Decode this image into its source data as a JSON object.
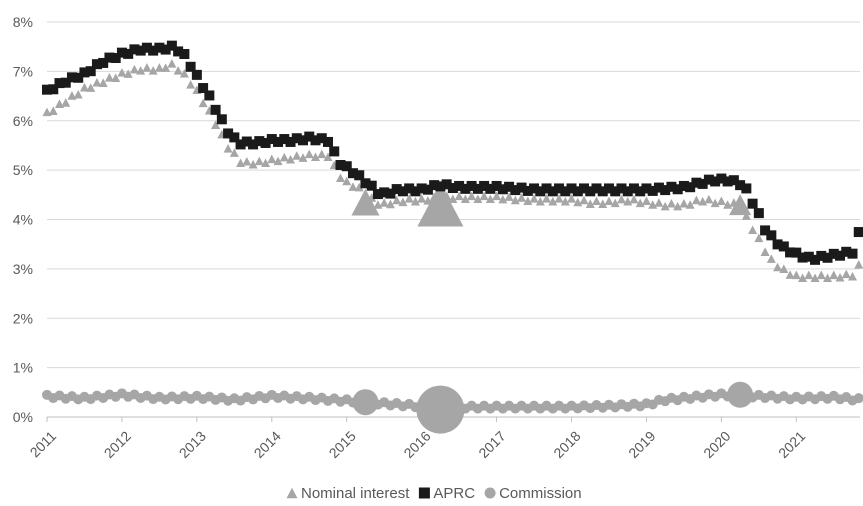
{
  "chart_data": {
    "type": "scatter",
    "title": "",
    "xlabel": "",
    "ylabel": "",
    "ylim": [
      0,
      8
    ],
    "xlim": [
      2011,
      2021.85
    ],
    "y_ticks": [
      "0%",
      "1%",
      "2%",
      "3%",
      "4%",
      "5%",
      "6%",
      "7%",
      "8%"
    ],
    "x_ticks": [
      "2011",
      "2012",
      "2013",
      "2014",
      "2015",
      "2016",
      "2017",
      "2018",
      "2019",
      "2020",
      "2021"
    ],
    "grid": true,
    "legend_position": "bottom",
    "series": [
      {
        "name": "Nominal interest",
        "marker": "triangle",
        "color": "#a6a6a6",
        "keypoints": [
          [
            2011.0,
            6.15
          ],
          [
            2011.25,
            6.4
          ],
          [
            2011.5,
            6.65
          ],
          [
            2011.75,
            6.8
          ],
          [
            2012.0,
            6.95
          ],
          [
            2012.25,
            7.05
          ],
          [
            2012.5,
            7.05
          ],
          [
            2012.65,
            7.15
          ],
          [
            2012.8,
            7.0
          ],
          [
            2013.0,
            6.6
          ],
          [
            2013.2,
            6.1
          ],
          [
            2013.4,
            5.5
          ],
          [
            2013.6,
            5.15
          ],
          [
            2013.8,
            5.15
          ],
          [
            2014.0,
            5.2
          ],
          [
            2014.25,
            5.25
          ],
          [
            2014.5,
            5.3
          ],
          [
            2014.75,
            5.3
          ],
          [
            2014.9,
            4.9
          ],
          [
            2015.0,
            4.75
          ],
          [
            2015.15,
            4.65
          ],
          [
            2015.3,
            4.45
          ],
          [
            2015.45,
            4.3
          ],
          [
            2015.6,
            4.35
          ],
          [
            2015.8,
            4.4
          ],
          [
            2016.0,
            4.4
          ],
          [
            2016.25,
            4.45
          ],
          [
            2016.5,
            4.45
          ],
          [
            2016.75,
            4.45
          ],
          [
            2017.0,
            4.45
          ],
          [
            2017.5,
            4.4
          ],
          [
            2018.0,
            4.4
          ],
          [
            2018.25,
            4.35
          ],
          [
            2018.5,
            4.35
          ],
          [
            2018.75,
            4.4
          ],
          [
            2019.0,
            4.35
          ],
          [
            2019.25,
            4.3
          ],
          [
            2019.5,
            4.3
          ],
          [
            2019.75,
            4.4
          ],
          [
            2020.0,
            4.35
          ],
          [
            2020.25,
            4.3
          ],
          [
            2020.35,
            4.0
          ],
          [
            2020.5,
            3.6
          ],
          [
            2020.65,
            3.2
          ],
          [
            2020.8,
            3.0
          ],
          [
            2021.0,
            2.85
          ],
          [
            2021.25,
            2.85
          ],
          [
            2021.5,
            2.85
          ],
          [
            2021.75,
            2.88
          ],
          [
            2021.85,
            3.1
          ]
        ],
        "highlights": [
          {
            "x": 2015.25,
            "y": 4.35,
            "size": "medium"
          },
          {
            "x": 2016.25,
            "y": 4.3,
            "size": "large"
          },
          {
            "x": 2020.25,
            "y": 4.3,
            "size": "small"
          }
        ]
      },
      {
        "name": "APRC",
        "marker": "square",
        "color": "#1a1a1a",
        "keypoints": [
          [
            2011.0,
            6.6
          ],
          [
            2011.25,
            6.8
          ],
          [
            2011.5,
            6.95
          ],
          [
            2011.75,
            7.2
          ],
          [
            2012.0,
            7.35
          ],
          [
            2012.25,
            7.45
          ],
          [
            2012.5,
            7.45
          ],
          [
            2012.7,
            7.5
          ],
          [
            2012.85,
            7.3
          ],
          [
            2013.0,
            6.9
          ],
          [
            2013.2,
            6.4
          ],
          [
            2013.4,
            5.8
          ],
          [
            2013.55,
            5.55
          ],
          [
            2013.8,
            5.55
          ],
          [
            2014.0,
            5.6
          ],
          [
            2014.25,
            5.6
          ],
          [
            2014.5,
            5.65
          ],
          [
            2014.75,
            5.6
          ],
          [
            2014.9,
            5.15
          ],
          [
            2015.1,
            4.95
          ],
          [
            2015.3,
            4.7
          ],
          [
            2015.45,
            4.5
          ],
          [
            2015.7,
            4.6
          ],
          [
            2016.0,
            4.6
          ],
          [
            2016.25,
            4.7
          ],
          [
            2016.5,
            4.65
          ],
          [
            2016.75,
            4.65
          ],
          [
            2017.0,
            4.65
          ],
          [
            2017.5,
            4.6
          ],
          [
            2018.0,
            4.6
          ],
          [
            2018.5,
            4.6
          ],
          [
            2019.0,
            4.6
          ],
          [
            2019.5,
            4.65
          ],
          [
            2019.75,
            4.75
          ],
          [
            2019.9,
            4.8
          ],
          [
            2020.1,
            4.8
          ],
          [
            2020.3,
            4.7
          ],
          [
            2020.4,
            4.4
          ],
          [
            2020.5,
            4.1
          ],
          [
            2020.6,
            3.75
          ],
          [
            2020.8,
            3.45
          ],
          [
            2021.0,
            3.3
          ],
          [
            2021.2,
            3.2
          ],
          [
            2021.4,
            3.25
          ],
          [
            2021.6,
            3.3
          ],
          [
            2021.8,
            3.35
          ],
          [
            2021.85,
            3.9
          ]
        ],
        "highlights": []
      },
      {
        "name": "Commission",
        "marker": "circle",
        "color": "#a6a6a6",
        "keypoints": [
          [
            2011.0,
            0.42
          ],
          [
            2011.5,
            0.38
          ],
          [
            2012.0,
            0.45
          ],
          [
            2012.5,
            0.38
          ],
          [
            2013.0,
            0.4
          ],
          [
            2013.5,
            0.35
          ],
          [
            2014.0,
            0.42
          ],
          [
            2014.5,
            0.38
          ],
          [
            2015.0,
            0.33
          ],
          [
            2015.5,
            0.27
          ],
          [
            2016.0,
            0.22
          ],
          [
            2016.5,
            0.2
          ],
          [
            2017.0,
            0.2
          ],
          [
            2017.5,
            0.2
          ],
          [
            2018.0,
            0.2
          ],
          [
            2018.5,
            0.22
          ],
          [
            2019.0,
            0.25
          ],
          [
            2019.25,
            0.35
          ],
          [
            2019.5,
            0.38
          ],
          [
            2019.75,
            0.42
          ],
          [
            2020.0,
            0.45
          ],
          [
            2020.5,
            0.42
          ],
          [
            2021.0,
            0.38
          ],
          [
            2021.5,
            0.4
          ],
          [
            2021.85,
            0.35
          ]
        ],
        "highlights": [
          {
            "x": 2015.25,
            "y": 0.3,
            "size": "medium"
          },
          {
            "x": 2016.25,
            "y": 0.15,
            "size": "large"
          },
          {
            "x": 2020.25,
            "y": 0.45,
            "size": "medium"
          }
        ]
      }
    ]
  }
}
